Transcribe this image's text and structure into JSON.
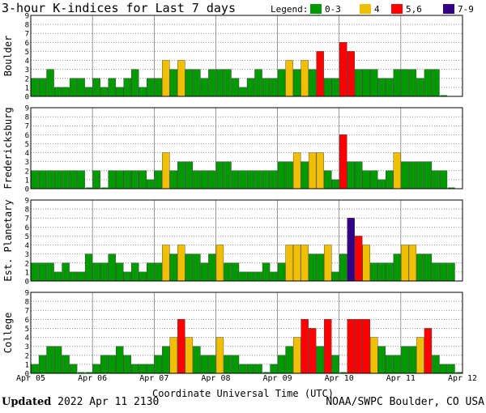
{
  "chart_data": {
    "type": "bar",
    "title": "3-hour K-indices for Last 7 days",
    "legend": {
      "title": "Legend:",
      "entries": [
        {
          "label": "0-3",
          "color": "#009900"
        },
        {
          "label": "4",
          "color": "#f0c000"
        },
        {
          "label": "5,6",
          "color": "#ff0000"
        },
        {
          "label": "7-9",
          "color": "#330088"
        }
      ]
    },
    "xlabel": "Coordinate Universal Time (UTC)",
    "x_ticks": [
      "Apr 05",
      "Apr 06",
      "Apr 07",
      "Apr 08",
      "Apr 09",
      "Apr 10",
      "Apr 11",
      "Apr 12"
    ],
    "ylim": [
      0,
      9
    ],
    "y_ticks": [
      0,
      1,
      2,
      3,
      4,
      5,
      6,
      7,
      8,
      9
    ],
    "bins_per_day": 8,
    "series": [
      {
        "name": "Boulder",
        "values": [
          2,
          2,
          3,
          1,
          1,
          2,
          2,
          1,
          2,
          1,
          2,
          1,
          2,
          3,
          1,
          2,
          2,
          4,
          3,
          4,
          3,
          3,
          2,
          3,
          3,
          3,
          2,
          1,
          2,
          3,
          2,
          2,
          3,
          4,
          3,
          4,
          3,
          5,
          2,
          2,
          6,
          5,
          3,
          3,
          3,
          2,
          2,
          3,
          3,
          3,
          2,
          3,
          3,
          0
        ]
      },
      {
        "name": "Fredericksburg",
        "values": [
          2,
          2,
          2,
          2,
          2,
          2,
          2,
          0,
          2,
          0,
          2,
          2,
          2,
          2,
          2,
          1,
          2,
          4,
          2,
          3,
          3,
          2,
          2,
          2,
          3,
          3,
          2,
          2,
          2,
          2,
          2,
          2,
          3,
          3,
          4,
          3,
          4,
          4,
          2,
          1,
          6,
          3,
          3,
          2,
          2,
          1,
          2,
          4,
          3,
          3,
          3,
          3,
          2,
          2,
          0
        ]
      },
      {
        "name": "Est. Planetary",
        "values": [
          2,
          2,
          2,
          1,
          2,
          1,
          1,
          3,
          2,
          2,
          3,
          2,
          1,
          2,
          1,
          2,
          2,
          4,
          3,
          4,
          3,
          3,
          2,
          3,
          4,
          2,
          2,
          1,
          1,
          1,
          2,
          1,
          2,
          4,
          4,
          4,
          3,
          3,
          4,
          1,
          3,
          7,
          5,
          4,
          2,
          2,
          2,
          3,
          4,
          4,
          3,
          3,
          2,
          2,
          2
        ]
      },
      {
        "name": "College",
        "values": [
          1,
          2,
          3,
          3,
          2,
          1,
          0,
          0,
          1,
          2,
          2,
          3,
          2,
          1,
          1,
          1,
          2,
          3,
          4,
          6,
          4,
          3,
          2,
          2,
          4,
          2,
          2,
          1,
          1,
          1,
          0,
          1,
          2,
          3,
          4,
          6,
          5,
          3,
          6,
          2,
          0,
          6,
          6,
          6,
          4,
          3,
          2,
          2,
          3,
          3,
          4,
          5,
          2,
          1,
          1,
          0
        ]
      }
    ]
  },
  "footer": {
    "updated_label": "Updated",
    "updated_value": "2022 Apr 11 2130",
    "source": "NOAA/SWPC Boulder, CO USA"
  }
}
